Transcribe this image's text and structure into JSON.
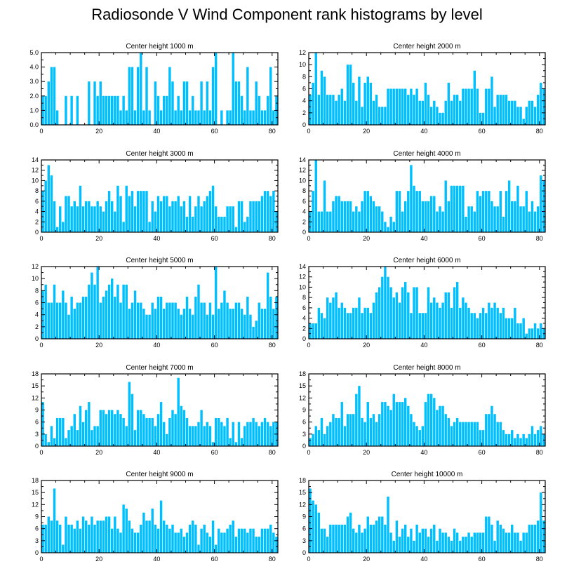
{
  "title": "Radiosonde V Wind Component rank histograms by level",
  "bar_color": "#00bfff",
  "chart_data": [
    {
      "type": "bar",
      "title": "Center height 1000 m",
      "ylim": [
        0,
        5
      ],
      "yticks": [
        "0.0",
        "1.0",
        "2.0",
        "3.0",
        "4.0",
        "5.0"
      ],
      "xticks": [
        "0",
        "20",
        "40",
        "60",
        "80"
      ],
      "values": [
        2,
        2,
        3,
        4,
        4,
        1,
        0,
        0,
        2,
        0,
        2,
        0,
        2,
        0,
        0,
        0,
        3,
        0,
        3,
        2,
        3,
        2,
        2,
        2,
        2,
        2,
        2,
        1,
        2,
        1,
        4,
        4,
        1,
        4,
        5,
        1,
        4,
        1,
        0,
        3,
        2,
        1,
        2,
        2,
        4,
        3,
        1,
        2,
        1,
        3,
        3,
        1,
        2,
        1,
        1,
        3,
        1,
        3,
        1,
        4,
        5,
        0,
        1,
        0,
        1,
        1,
        5,
        3,
        3,
        2,
        1,
        4,
        1,
        1,
        3,
        2,
        1,
        1,
        2,
        4,
        1,
        2
      ]
    },
    {
      "type": "bar",
      "title": "Center height 2000 m",
      "ylim": [
        0,
        12
      ],
      "yticks": [
        "0",
        "2",
        "4",
        "6",
        "8",
        "10",
        "12"
      ],
      "xticks": [
        "0",
        "20",
        "40",
        "60",
        "80"
      ],
      "values": [
        5,
        7,
        12,
        5,
        9,
        8,
        5,
        5,
        5,
        4,
        5,
        6,
        4,
        10,
        10,
        7,
        4,
        8,
        3,
        7,
        8,
        7,
        4,
        5,
        3,
        3,
        3,
        6,
        6,
        6,
        6,
        6,
        6,
        6,
        5,
        6,
        5,
        6,
        4,
        4,
        7,
        5,
        3,
        4,
        3,
        2,
        2,
        4,
        7,
        4,
        5,
        5,
        4,
        6,
        6,
        6,
        6,
        9,
        6,
        2,
        2,
        6,
        6,
        8,
        3,
        5,
        5,
        5,
        5,
        4,
        4,
        4,
        3,
        3,
        1,
        3,
        4,
        4,
        3,
        5,
        7,
        6
      ]
    },
    {
      "type": "bar",
      "title": "Center height 3000 m",
      "ylim": [
        0,
        14
      ],
      "yticks": [
        "0",
        "2",
        "4",
        "6",
        "8",
        "10",
        "12",
        "14"
      ],
      "xticks": [
        "0",
        "20",
        "40",
        "60",
        "80"
      ],
      "values": [
        8,
        10,
        13,
        11,
        6,
        1,
        5,
        2,
        7,
        7,
        5,
        6,
        5,
        9,
        5,
        6,
        6,
        5,
        5,
        6,
        5,
        4,
        6,
        8,
        6,
        4,
        9,
        7,
        2,
        9,
        7,
        8,
        5,
        8,
        8,
        8,
        8,
        2,
        6,
        4,
        7,
        6,
        7,
        7,
        5,
        6,
        6,
        7,
        5,
        6,
        3,
        7,
        3,
        5,
        7,
        5,
        6,
        7,
        8,
        9,
        5,
        3,
        3,
        3,
        5,
        5,
        5,
        1,
        6,
        6,
        2,
        3,
        6,
        6,
        6,
        6,
        7,
        8,
        8,
        7,
        8,
        4
      ]
    },
    {
      "type": "bar",
      "title": "Center height 4000 m",
      "ylim": [
        0,
        14
      ],
      "yticks": [
        "0",
        "2",
        "4",
        "6",
        "8",
        "10",
        "12",
        "14"
      ],
      "xticks": [
        "0",
        "20",
        "40",
        "60",
        "80"
      ],
      "values": [
        4,
        8,
        14,
        4,
        4,
        10,
        4,
        4,
        6,
        7,
        7,
        6,
        6,
        6,
        6,
        4,
        5,
        4,
        6,
        8,
        8,
        7,
        6,
        5,
        5,
        4,
        2,
        1,
        3,
        2,
        8,
        8,
        4,
        6,
        8,
        13,
        9,
        8,
        8,
        6,
        6,
        6,
        7,
        7,
        4,
        5,
        4,
        10,
        6,
        9,
        9,
        9,
        9,
        9,
        3,
        5,
        5,
        4,
        8,
        7,
        8,
        8,
        8,
        6,
        5,
        5,
        8,
        3,
        8,
        10,
        6,
        6,
        9,
        5,
        5,
        8,
        4,
        6,
        4,
        5,
        11,
        10
      ]
    },
    {
      "type": "bar",
      "title": "Center height 5000 m",
      "ylim": [
        0,
        12
      ],
      "yticks": [
        "0",
        "2",
        "4",
        "6",
        "8",
        "10",
        "12"
      ],
      "xticks": [
        "0",
        "20",
        "40",
        "60",
        "80"
      ],
      "values": [
        8,
        9,
        6,
        6,
        9,
        6,
        6,
        8,
        6,
        4,
        7,
        5,
        6,
        6,
        7,
        7,
        9,
        11,
        9,
        12,
        6,
        7,
        8,
        9,
        10,
        7,
        9,
        6,
        9,
        9,
        5,
        6,
        8,
        6,
        6,
        5,
        4,
        4,
        6,
        5,
        7,
        7,
        5,
        6,
        6,
        6,
        6,
        5,
        4,
        5,
        7,
        5,
        4,
        7,
        9,
        6,
        6,
        4,
        6,
        4,
        12,
        5,
        6,
        8,
        6,
        5,
        5,
        6,
        6,
        5,
        4,
        7,
        4,
        2,
        3,
        6,
        5,
        5,
        11,
        7,
        5,
        7
      ]
    },
    {
      "type": "bar",
      "title": "Center height 6000 m",
      "ylim": [
        0,
        14
      ],
      "yticks": [
        "0",
        "2",
        "4",
        "6",
        "8",
        "10",
        "12",
        "14"
      ],
      "xticks": [
        "0",
        "20",
        "40",
        "60",
        "80"
      ],
      "values": [
        3,
        3,
        3,
        6,
        5,
        4,
        8,
        7,
        8,
        9,
        6,
        7,
        6,
        5,
        5,
        6,
        6,
        8,
        5,
        6,
        6,
        5,
        7,
        9,
        10,
        12,
        14,
        12,
        10,
        8,
        9,
        7,
        10,
        11,
        9,
        5,
        10,
        10,
        5,
        5,
        5,
        10,
        7,
        8,
        7,
        6,
        7,
        9,
        9,
        6,
        10,
        11,
        6,
        8,
        7,
        6,
        5,
        5,
        4,
        5,
        6,
        5,
        7,
        6,
        7,
        6,
        5,
        6,
        4,
        4,
        4,
        6,
        3,
        3,
        4,
        1,
        2,
        2,
        3,
        2,
        3,
        2
      ]
    },
    {
      "type": "bar",
      "title": "Center height 7000 m",
      "ylim": [
        0,
        18
      ],
      "yticks": [
        "0",
        "3",
        "6",
        "9",
        "12",
        "15",
        "18"
      ],
      "xticks": [
        "0",
        "20",
        "40",
        "60",
        "80"
      ],
      "values": [
        11,
        3,
        1,
        5,
        2,
        7,
        7,
        7,
        2,
        4,
        5,
        8,
        4,
        10,
        6,
        9,
        11,
        4,
        5,
        5,
        9,
        9,
        8,
        9,
        9,
        8,
        9,
        8,
        7,
        5,
        16,
        13,
        4,
        9,
        9,
        8,
        7,
        7,
        7,
        5,
        8,
        11,
        6,
        3,
        7,
        9,
        8,
        17,
        10,
        9,
        7,
        5,
        5,
        5,
        6,
        9,
        5,
        6,
        5,
        1,
        7,
        7,
        6,
        5,
        7,
        2,
        6,
        1,
        6,
        2,
        5,
        6,
        6,
        7,
        6,
        5,
        6,
        7,
        6,
        5,
        6,
        6
      ]
    },
    {
      "type": "bar",
      "title": "Center height 8000 m",
      "ylim": [
        0,
        18
      ],
      "yticks": [
        "0",
        "3",
        "6",
        "9",
        "12",
        "15",
        "18"
      ],
      "xticks": [
        "0",
        "20",
        "40",
        "60",
        "80"
      ],
      "values": [
        2,
        3,
        5,
        4,
        7,
        3,
        5,
        6,
        8,
        7,
        7,
        11,
        5,
        8,
        8,
        8,
        13,
        15,
        7,
        6,
        11,
        7,
        8,
        6,
        8,
        11,
        11,
        10,
        9,
        13,
        11,
        11,
        11,
        12,
        10,
        8,
        6,
        5,
        4,
        5,
        11,
        13,
        13,
        12,
        9,
        10,
        10,
        8,
        7,
        5,
        6,
        7,
        6,
        6,
        6,
        6,
        6,
        6,
        6,
        4,
        4,
        8,
        8,
        10,
        8,
        6,
        6,
        4,
        3,
        3,
        4,
        2,
        3,
        2,
        3,
        2,
        3,
        5,
        3,
        4,
        5,
        3
      ]
    },
    {
      "type": "bar",
      "title": "Center height 9000 m",
      "ylim": [
        0,
        18
      ],
      "yticks": [
        "0",
        "3",
        "6",
        "9",
        "12",
        "15",
        "18"
      ],
      "xticks": [
        "0",
        "20",
        "40",
        "60",
        "80"
      ],
      "values": [
        7,
        7,
        9,
        8,
        16,
        8,
        7,
        2,
        9,
        7,
        7,
        6,
        8,
        6,
        9,
        8,
        7,
        9,
        7,
        8,
        8,
        8,
        9,
        9,
        6,
        9,
        6,
        5,
        12,
        11,
        8,
        6,
        5,
        5,
        7,
        10,
        8,
        8,
        11,
        7,
        6,
        13,
        8,
        7,
        6,
        7,
        5,
        5,
        6,
        4,
        5,
        7,
        8,
        7,
        2,
        6,
        7,
        5,
        4,
        8,
        2,
        6,
        5,
        5,
        6,
        7,
        8,
        4,
        6,
        6,
        6,
        5,
        6,
        6,
        4,
        4,
        6,
        6,
        6,
        7,
        5,
        4
      ]
    },
    {
      "type": "bar",
      "title": "Center height 10000 m",
      "ylim": [
        0,
        18
      ],
      "yticks": [
        "0",
        "3",
        "6",
        "9",
        "12",
        "15",
        "18"
      ],
      "xticks": [
        "0",
        "20",
        "40",
        "60",
        "80"
      ],
      "values": [
        16,
        13,
        12,
        10,
        6,
        6,
        4,
        7,
        7,
        7,
        7,
        7,
        7,
        9,
        10,
        6,
        5,
        7,
        5,
        6,
        9,
        7,
        7,
        8,
        9,
        9,
        7,
        14,
        5,
        3,
        8,
        4,
        6,
        7,
        4,
        6,
        3,
        7,
        5,
        6,
        6,
        4,
        6,
        7,
        3,
        6,
        5,
        5,
        4,
        3,
        6,
        5,
        3,
        4,
        4,
        5,
        4,
        5,
        5,
        5,
        5,
        9,
        9,
        7,
        3,
        8,
        7,
        6,
        5,
        5,
        7,
        5,
        5,
        3,
        5,
        5,
        7,
        7,
        7,
        8,
        15,
        8
      ]
    }
  ]
}
